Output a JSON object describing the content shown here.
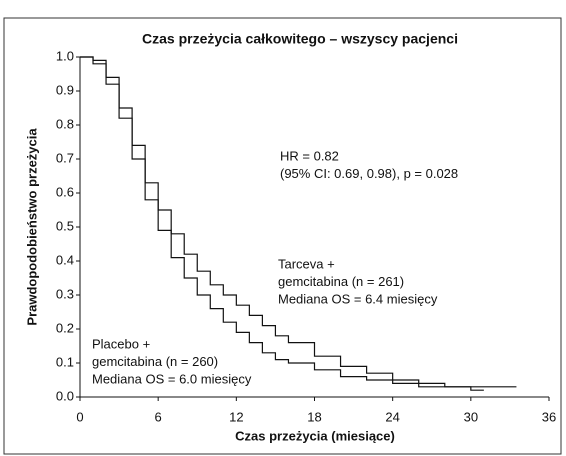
{
  "chart_data": {
    "type": "step",
    "title": "Czas przeżycia całkowitego – wszyscy pacjenci",
    "x_label": "Czas przeżycia (miesiące)",
    "y_label": "Prawdopodobieństwo przeżycia",
    "xlim": [
      0,
      36
    ],
    "xticks": [
      0,
      6,
      12,
      18,
      24,
      30,
      36
    ],
    "ylim": [
      0,
      1
    ],
    "yticks": [
      {
        "value": 0,
        "label": "0.0"
      },
      0.1,
      0.2,
      0.3,
      0.4,
      0.5,
      0.6,
      0.7,
      0.8,
      0.9,
      {
        "value": 1,
        "label": "1.0"
      }
    ],
    "series": [
      {
        "name": "Tarceva",
        "color": "#111111",
        "x": [
          0,
          1,
          2,
          3,
          4,
          5,
          6,
          7,
          8,
          9,
          10,
          11,
          12,
          13,
          14,
          15,
          16,
          18,
          20,
          22,
          24,
          26,
          28,
          30,
          31,
          33.5
        ],
        "values": [
          1.0,
          0.99,
          0.94,
          0.85,
          0.74,
          0.63,
          0.55,
          0.48,
          0.42,
          0.37,
          0.33,
          0.3,
          0.27,
          0.24,
          0.21,
          0.18,
          0.16,
          0.12,
          0.09,
          0.07,
          0.05,
          0.04,
          0.03,
          0.03,
          0.03,
          0.03
        ]
      },
      {
        "name": "Placebo",
        "color": "#111111",
        "x": [
          0,
          1,
          2,
          3,
          4,
          5,
          6,
          7,
          8,
          9,
          10,
          11,
          12,
          13,
          14,
          15,
          16,
          18,
          20,
          22,
          24,
          26,
          28,
          30,
          31
        ],
        "values": [
          1.0,
          0.98,
          0.92,
          0.82,
          0.7,
          0.58,
          0.49,
          0.41,
          0.35,
          0.3,
          0.26,
          0.22,
          0.19,
          0.16,
          0.13,
          0.11,
          0.1,
          0.08,
          0.06,
          0.05,
          0.04,
          0.03,
          0.03,
          0.02,
          0.02
        ]
      }
    ],
    "annotations": [
      [
        "HR = 0.82",
        "(95% CI: 0.69, 0.98), p = 0.028"
      ],
      [
        "Tarceva +",
        "gemcitabina (n = 261)",
        "Mediana OS = 6.4 miesięcy"
      ],
      [
        "Placebo +",
        "gemcitabina (n = 260)",
        "Mediana OS = 6.0 miesięcy"
      ]
    ]
  }
}
